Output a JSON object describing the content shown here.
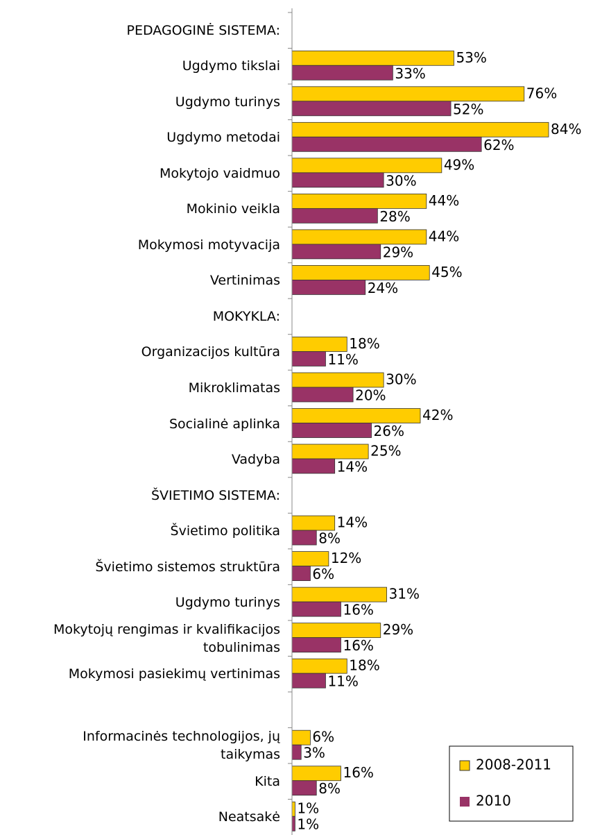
{
  "chart_data": {
    "type": "hbar",
    "categories": [
      "PEDAGOGINĖ SISTEMA:",
      "Ugdymo tikslai",
      "Ugdymo turinys",
      "Ugdymo metodai",
      "Mokytojo vaidmuo",
      "Mokinio veikla",
      "Mokymosi motyvacija",
      "Vertinimas",
      "MOKYKLA:",
      "Organizacijos kultūra",
      "Mikroklimatas",
      "Socialinė aplinka",
      "Vadyba",
      "ŠVIETIMO SISTEMA:",
      "Švietimo politika",
      "Švietimo sistemos struktūra",
      "Ugdymo turinys",
      "Mokytojų rengimas ir kvalifikacijos\ntobulinimas",
      "Mokymosi pasiekimų vertinimas",
      null,
      "Informacinės technologijos, jų\ntaikymas",
      "Kita",
      "Neatsakė"
    ],
    "series": [
      {
        "name": "2008-2011",
        "color": "#ffcc00",
        "values": [
          null,
          53,
          76,
          84,
          49,
          44,
          44,
          45,
          null,
          18,
          30,
          42,
          25,
          null,
          14,
          12,
          31,
          29,
          18,
          null,
          6,
          16,
          1
        ],
        "value_labels": [
          null,
          "53%",
          "76%",
          "84%",
          "49%",
          "44%",
          "44%",
          "45%",
          null,
          "18%",
          "30%",
          "42%",
          "25%",
          null,
          "14%",
          "12%",
          "31%",
          "29%",
          "18%",
          null,
          "6%",
          "16%",
          "1%"
        ]
      },
      {
        "name": "2010",
        "color": "#993366",
        "values": [
          null,
          33,
          52,
          62,
          30,
          28,
          29,
          24,
          null,
          11,
          20,
          26,
          14,
          null,
          8,
          6,
          16,
          16,
          11,
          null,
          3,
          8,
          1
        ],
        "value_labels": [
          null,
          "33%",
          "52%",
          "62%",
          "30%",
          "28%",
          "29%",
          "24%",
          null,
          "11%",
          "20%",
          "26%",
          "14%",
          null,
          "8%",
          "6%",
          "16%",
          "16%",
          "11%",
          null,
          "3%",
          "8%",
          "1%"
        ]
      }
    ]
  }
}
